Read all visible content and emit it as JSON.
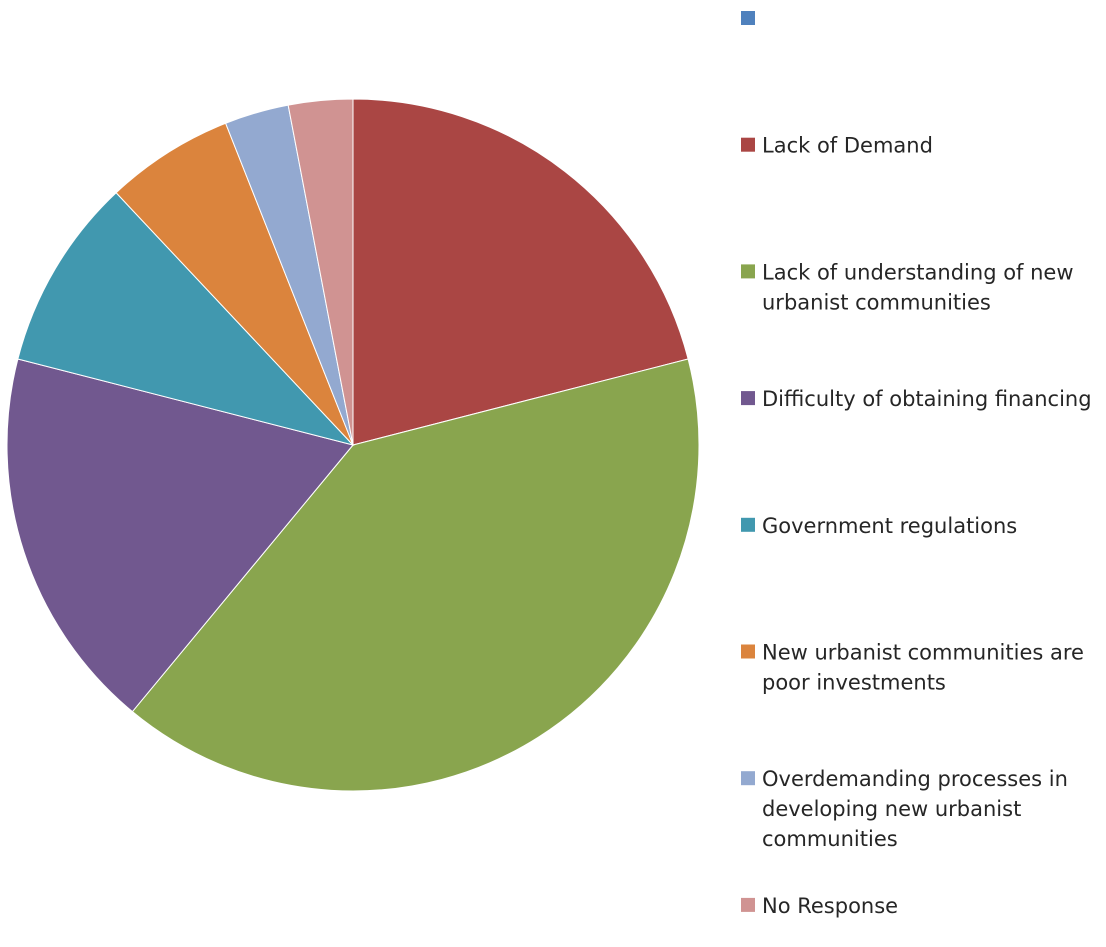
{
  "chart_data": {
    "type": "pie",
    "title": "",
    "legend_position": "right",
    "series": [
      {
        "label": "",
        "value": 0,
        "color": "#4F81BD"
      },
      {
        "label": "Lack of Demand",
        "value": 21,
        "color": "#AA4644"
      },
      {
        "label": "Lack of understanding of new urbanist communities",
        "value": 40,
        "color": "#89A54E"
      },
      {
        "label": "Difficulty of obtaining financing",
        "value": 18,
        "color": "#71588F"
      },
      {
        "label": "Government regulations",
        "value": 9,
        "color": "#4198AF"
      },
      {
        "label": "New urbanist communities are poor investments",
        "value": 6,
        "color": "#DB843D"
      },
      {
        "label": "Overdemanding processes in developing new urbanist communities",
        "value": 3,
        "color": "#93A9D0"
      },
      {
        "label": "No Response",
        "value": 3,
        "color": "#D09392"
      }
    ],
    "legend_lines": [
      [
        ""
      ],
      [
        "Lack of Demand"
      ],
      [
        "Lack of understanding of new",
        "urbanist communities"
      ],
      [
        "Difficulty of obtaining financing"
      ],
      [
        "Government regulations"
      ],
      [
        "New urbanist communities are",
        "poor investments"
      ],
      [
        "Overdemanding processes in",
        "developing new urbanist",
        "communities"
      ],
      [
        "No Response"
      ]
    ]
  }
}
